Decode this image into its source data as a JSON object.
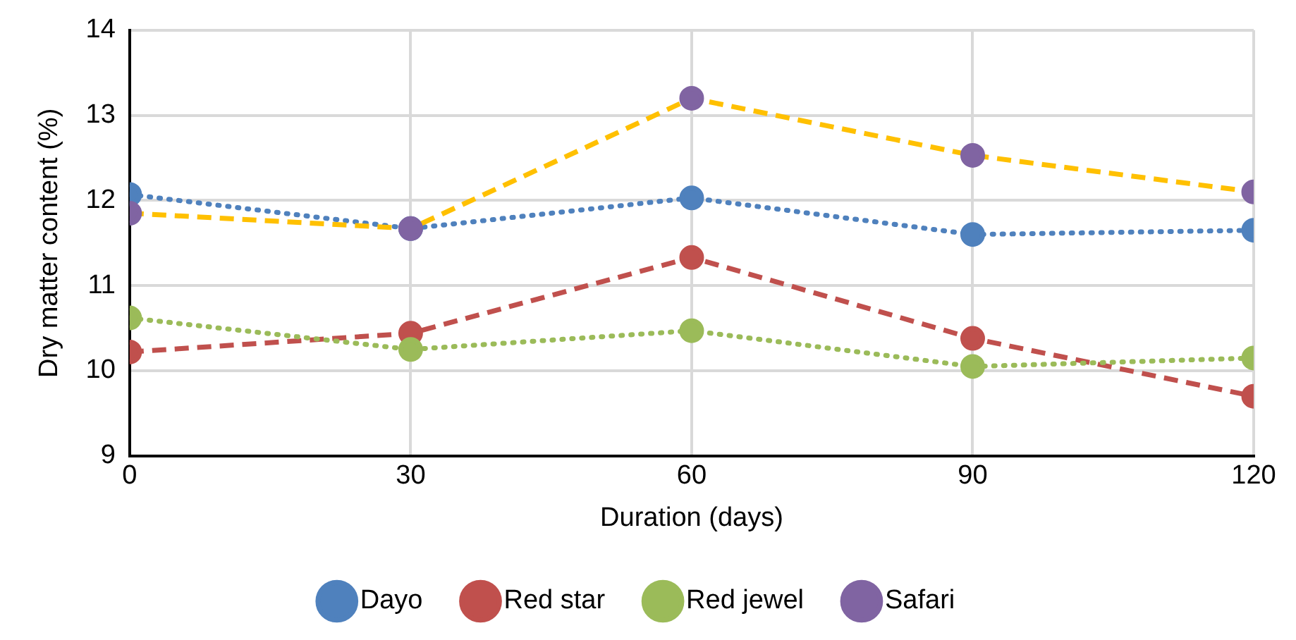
{
  "chart_data": {
    "type": "line",
    "xlabel": "Duration (days)",
    "ylabel": "Dry matter content (%)",
    "x": [
      0,
      30,
      60,
      90,
      120
    ],
    "xlim": [
      0,
      120
    ],
    "xticks": [
      0,
      30,
      60,
      90,
      120
    ],
    "ylim": [
      9,
      14
    ],
    "yticks": [
      9,
      10,
      11,
      12,
      13,
      14
    ],
    "grid": true,
    "legend": "bottom",
    "marker": "circle",
    "series": [
      {
        "name": "Dayo",
        "color": "#4f81bd",
        "line_style": "dotted",
        "values": [
          12.07,
          11.67,
          12.03,
          11.6,
          11.65
        ]
      },
      {
        "name": "Red star",
        "color": "#c0504d",
        "line_style": "dashed",
        "values": [
          10.22,
          10.44,
          11.33,
          10.38,
          9.7
        ]
      },
      {
        "name": "Red jewel",
        "color": "#9bbb59",
        "line_style": "dotted",
        "values": [
          10.62,
          10.25,
          10.47,
          10.05,
          10.15
        ]
      },
      {
        "name": "Safari",
        "color": "#ffc000",
        "colors": [
          "#8064a2",
          "#8064a2",
          "#8064a2",
          "#8064a2",
          "#8064a2"
        ],
        "line_style": "dashed",
        "values": [
          11.85,
          11.67,
          13.2,
          12.53,
          12.1
        ]
      }
    ]
  }
}
